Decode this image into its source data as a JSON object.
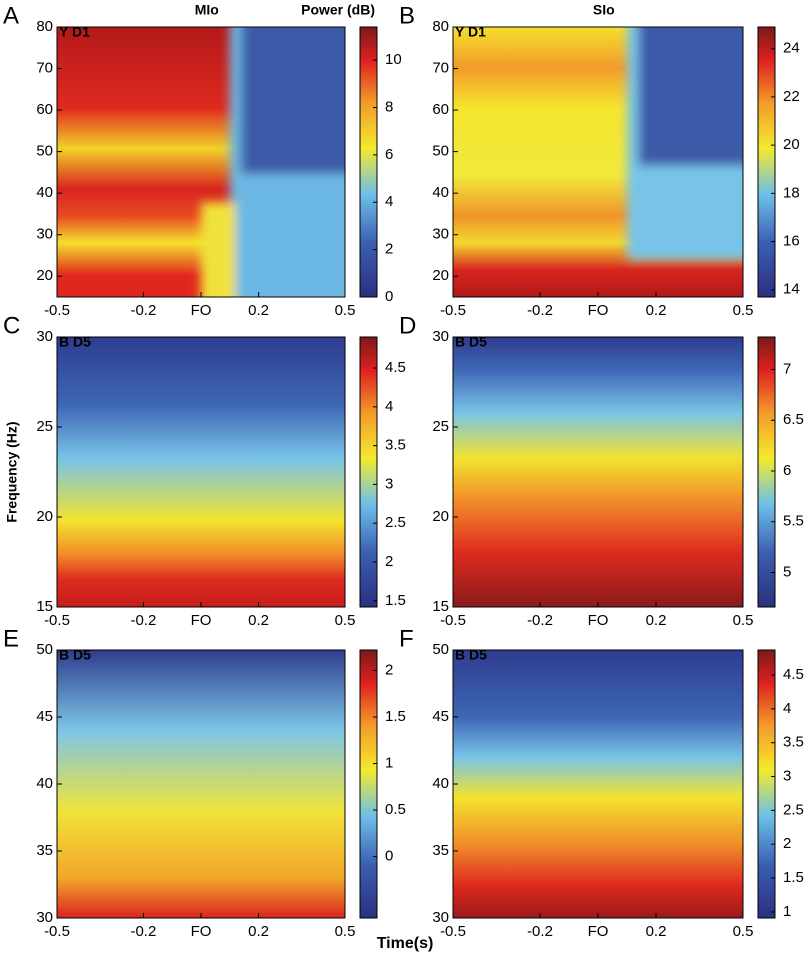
{
  "chart_data": [
    {
      "type": "heatmap",
      "panel": "A",
      "subtitle": "Y D1",
      "title": "MIo",
      "colorbar_label": "Power (dB)",
      "xlim": [
        -0.5,
        0.5
      ],
      "xticks": [
        -0.5,
        -0.2,
        {
          "value": 0,
          "label": "FO"
        },
        0.2,
        0.5
      ],
      "ylim": [
        15,
        80
      ],
      "yticks": [
        20,
        30,
        40,
        50,
        60,
        70,
        80
      ],
      "clim": [
        0,
        11.4
      ],
      "cticks": [
        0,
        2,
        4,
        6,
        8,
        10
      ]
    },
    {
      "type": "heatmap",
      "panel": "B",
      "subtitle": "Y D1",
      "title": "SIo",
      "xlim": [
        -0.5,
        0.5
      ],
      "xticks": [
        -0.5,
        -0.2,
        {
          "value": 0,
          "label": "FO"
        },
        0.2,
        0.5
      ],
      "ylim": [
        15,
        80
      ],
      "yticks": [
        20,
        30,
        40,
        50,
        60,
        70,
        80
      ],
      "clim": [
        13.7,
        24.9
      ],
      "cticks": [
        14,
        16,
        18,
        20,
        22,
        24
      ]
    },
    {
      "type": "heatmap",
      "panel": "C",
      "subtitle": "B D5",
      "ylabel": "Frequency (Hz)",
      "xlim": [
        -0.5,
        0.5
      ],
      "xticks": [
        -0.5,
        -0.2,
        {
          "value": 0,
          "label": "FO"
        },
        0.2,
        0.5
      ],
      "ylim": [
        15,
        30
      ],
      "yticks": [
        15,
        20,
        25,
        30
      ],
      "clim": [
        1.42,
        4.9
      ],
      "cticks": [
        1.5,
        2,
        2.5,
        3,
        3.5,
        4,
        4.5
      ]
    },
    {
      "type": "heatmap",
      "panel": "D",
      "subtitle": "B D5",
      "xlim": [
        -0.5,
        0.5
      ],
      "xticks": [
        -0.5,
        -0.2,
        {
          "value": 0,
          "label": "FO"
        },
        0.2,
        0.5
      ],
      "ylim": [
        15,
        30
      ],
      "yticks": [
        15,
        20,
        25,
        30
      ],
      "clim": [
        4.66,
        7.32
      ],
      "cticks": [
        5,
        5.5,
        6,
        6.5,
        7
      ]
    },
    {
      "type": "heatmap",
      "panel": "E",
      "subtitle": "B D5",
      "xlabel": "Time(s)",
      "xlim": [
        -0.5,
        0.5
      ],
      "xticks": [
        -0.5,
        -0.2,
        {
          "value": 0,
          "label": "FO"
        },
        0.2,
        0.5
      ],
      "ylim": [
        30,
        50
      ],
      "yticks": [
        30,
        35,
        40,
        45,
        50
      ],
      "clim": [
        -0.66,
        2.22
      ],
      "cticks": [
        0,
        0.5,
        1,
        1.5,
        2
      ]
    },
    {
      "type": "heatmap",
      "panel": "F",
      "subtitle": "B D5",
      "xlim": [
        -0.5,
        0.5
      ],
      "xticks": [
        -0.5,
        -0.2,
        {
          "value": 0,
          "label": "FO"
        },
        0.2,
        0.5
      ],
      "ylim": [
        30,
        50
      ],
      "yticks": [
        30,
        35,
        40,
        45,
        50
      ],
      "clim": [
        0.91,
        4.87
      ],
      "cticks": [
        1,
        1.5,
        2,
        2.5,
        3,
        3.5,
        4,
        4.5
      ]
    }
  ]
}
